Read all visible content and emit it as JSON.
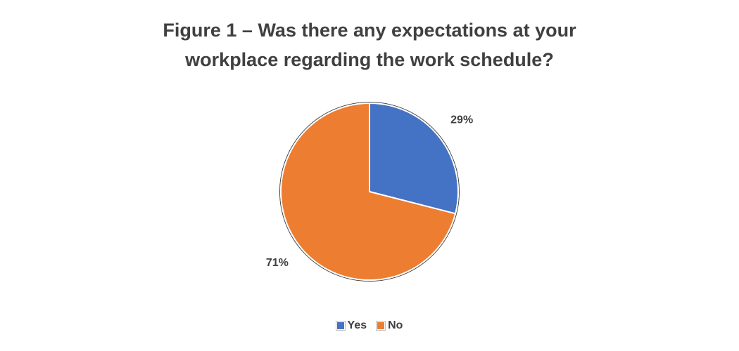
{
  "chart_data": {
    "type": "pie",
    "title_lines": [
      "Figure 1 – Was there any expectations at your",
      "workplace regarding the work schedule?"
    ],
    "categories": [
      "Yes",
      "No"
    ],
    "values": [
      29,
      71
    ],
    "data_labels": [
      "29%",
      "71%"
    ],
    "colors": [
      "#4472C4",
      "#ED7D31"
    ],
    "start_angle_deg": 0,
    "direction": "clockwise",
    "legend_position": "bottom",
    "legend": [
      "Yes",
      "No"
    ]
  }
}
